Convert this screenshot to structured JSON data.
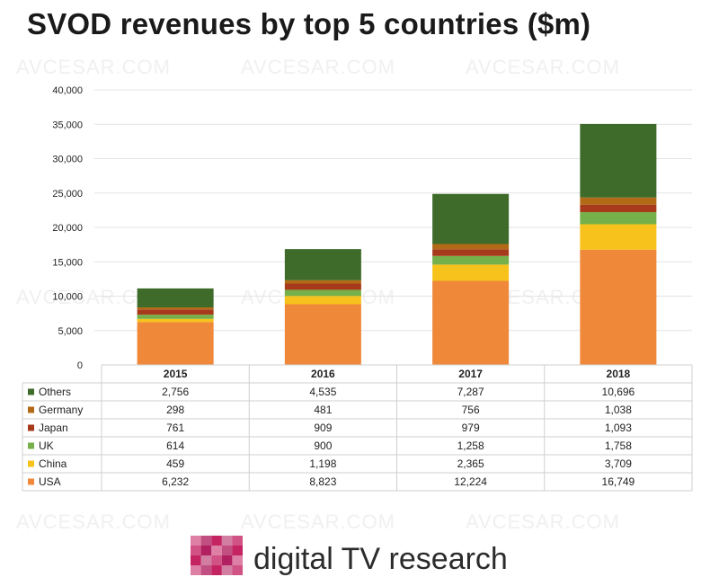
{
  "title": "SVOD revenues by top 5 countries ($m)",
  "watermark": "AVCESAR.COM",
  "brand": {
    "text": "digital TV research",
    "colors": [
      "#c2185b",
      "#e57373",
      "#ad1457",
      "#f48fb1"
    ]
  },
  "chart_data": {
    "type": "bar",
    "stacked": true,
    "categories": [
      "2015",
      "2016",
      "2017",
      "2018"
    ],
    "ylim": [
      0,
      40000
    ],
    "yticks": [
      0,
      5000,
      10000,
      15000,
      20000,
      25000,
      30000,
      35000,
      40000
    ],
    "ytick_labels": [
      "0",
      "5,000",
      "10,000",
      "15,000",
      "20,000",
      "25,000",
      "30,000",
      "35,000",
      "40,000"
    ],
    "grid": true,
    "legend": "in-table",
    "series": [
      {
        "name": "USA",
        "color": "#f0883a",
        "values": [
          6232,
          8823,
          12224,
          16749
        ],
        "labels": [
          "6,232",
          "8,823",
          "12,224",
          "16,749"
        ]
      },
      {
        "name": "China",
        "color": "#f7c21b",
        "values": [
          459,
          1198,
          2365,
          3709
        ],
        "labels": [
          "459",
          "1,198",
          "2,365",
          "3,709"
        ]
      },
      {
        "name": "UK",
        "color": "#75b04a",
        "values": [
          614,
          900,
          1258,
          1758
        ],
        "labels": [
          "614",
          "900",
          "1,258",
          "1,758"
        ]
      },
      {
        "name": "Japan",
        "color": "#a83a1c",
        "values": [
          761,
          909,
          979,
          1093
        ],
        "labels": [
          "761",
          "909",
          "979",
          "1,093"
        ]
      },
      {
        "name": "Germany",
        "color": "#b26a16",
        "values": [
          298,
          481,
          756,
          1038
        ],
        "labels": [
          "298",
          "481",
          "756",
          "1,038"
        ]
      },
      {
        "name": "Others",
        "color": "#3f6b2a",
        "values": [
          2756,
          4535,
          7287,
          10696
        ],
        "labels": [
          "2,756",
          "4,535",
          "7,287",
          "10,696"
        ]
      }
    ]
  }
}
